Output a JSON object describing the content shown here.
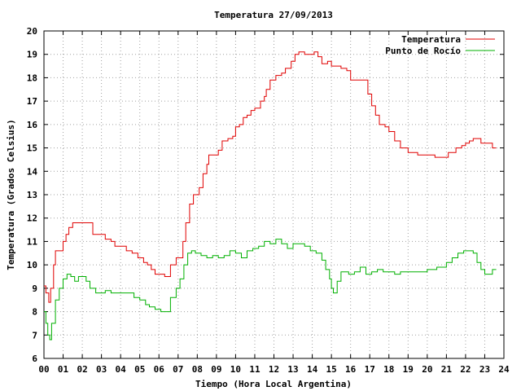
{
  "chart_data": {
    "type": "line",
    "title": "Temperatura 27/09/2013",
    "xlabel": "Tiempo (Hora Local Argentina)",
    "ylabel": "Temperatura (Grados Celsius)",
    "xlim": [
      0,
      24
    ],
    "ylim": [
      6,
      20
    ],
    "x_ticks": [
      "00",
      "01",
      "02",
      "03",
      "04",
      "05",
      "06",
      "07",
      "08",
      "09",
      "10",
      "11",
      "12",
      "13",
      "14",
      "15",
      "16",
      "17",
      "18",
      "19",
      "20",
      "21",
      "22",
      "23",
      "24"
    ],
    "y_ticks": [
      "6",
      "7",
      "8",
      "9",
      "10",
      "11",
      "12",
      "13",
      "14",
      "15",
      "16",
      "17",
      "18",
      "19",
      "20"
    ],
    "grid": true,
    "legend_position": "top-right",
    "series": [
      {
        "name": "Temperatura",
        "color": "#e00000",
        "x": [
          0.0,
          0.1,
          0.25,
          0.35,
          0.5,
          0.6,
          0.9,
          1.0,
          1.15,
          1.3,
          1.5,
          2.0,
          2.4,
          2.55,
          2.8,
          3.2,
          3.5,
          3.7,
          4.0,
          4.3,
          4.6,
          4.9,
          5.2,
          5.4,
          5.6,
          5.8,
          6.1,
          6.3,
          6.6,
          6.9,
          7.05,
          7.25,
          7.4,
          7.6,
          7.8,
          8.1,
          8.3,
          8.5,
          8.6,
          8.9,
          9.1,
          9.3,
          9.6,
          9.85,
          10.0,
          10.2,
          10.4,
          10.6,
          10.8,
          11.0,
          11.3,
          11.5,
          11.6,
          11.8,
          12.1,
          12.4,
          12.6,
          12.9,
          13.1,
          13.3,
          13.6,
          13.9,
          14.1,
          14.3,
          14.5,
          14.8,
          15.0,
          15.2,
          15.5,
          15.8,
          16.0,
          16.3,
          16.6,
          16.9,
          17.1,
          17.3,
          17.5,
          17.8,
          18.0,
          18.3,
          18.6,
          19.0,
          19.5,
          20.0,
          20.4,
          20.8,
          21.1,
          21.5,
          21.8,
          22.0,
          22.2,
          22.4,
          22.8,
          23.0,
          23.2,
          23.4,
          23.6
        ],
        "y": [
          9.1,
          8.8,
          8.4,
          9.0,
          10.0,
          10.6,
          10.6,
          11.0,
          11.3,
          11.6,
          11.8,
          11.8,
          11.8,
          11.3,
          11.3,
          11.1,
          11.0,
          10.8,
          10.8,
          10.6,
          10.5,
          10.3,
          10.1,
          10.0,
          9.8,
          9.6,
          9.6,
          9.5,
          10.0,
          10.3,
          10.3,
          11.0,
          11.8,
          12.6,
          13.0,
          13.3,
          13.9,
          14.3,
          14.7,
          14.7,
          14.9,
          15.3,
          15.4,
          15.5,
          15.9,
          16.0,
          16.3,
          16.4,
          16.6,
          16.7,
          17.0,
          17.2,
          17.5,
          17.9,
          18.1,
          18.2,
          18.4,
          18.7,
          19.0,
          19.1,
          19.0,
          19.0,
          19.1,
          18.9,
          18.6,
          18.7,
          18.5,
          18.5,
          18.4,
          18.3,
          17.9,
          17.9,
          17.9,
          17.3,
          16.8,
          16.4,
          16.0,
          15.9,
          15.7,
          15.3,
          15.0,
          14.8,
          14.7,
          14.7,
          14.6,
          14.6,
          14.8,
          15.0,
          15.1,
          15.2,
          15.3,
          15.4,
          15.2,
          15.2,
          15.2,
          15.0,
          15.0
        ]
      },
      {
        "name": "Punto de Rocío",
        "color": "#00b000",
        "x": [
          0.0,
          0.1,
          0.2,
          0.3,
          0.4,
          0.6,
          0.8,
          1.0,
          1.2,
          1.4,
          1.6,
          1.8,
          2.2,
          2.4,
          2.7,
          3.0,
          3.2,
          3.5,
          3.8,
          4.1,
          4.4,
          4.7,
          5.0,
          5.3,
          5.5,
          5.8,
          6.1,
          6.3,
          6.6,
          6.9,
          7.1,
          7.3,
          7.5,
          7.7,
          7.9,
          8.2,
          8.5,
          8.8,
          9.1,
          9.4,
          9.7,
          10.0,
          10.3,
          10.6,
          10.9,
          11.2,
          11.5,
          11.8,
          12.1,
          12.4,
          12.7,
          13.0,
          13.3,
          13.6,
          13.9,
          14.2,
          14.5,
          14.7,
          14.9,
          15.0,
          15.1,
          15.3,
          15.5,
          15.7,
          15.9,
          16.2,
          16.5,
          16.8,
          17.1,
          17.4,
          17.7,
          18.0,
          18.3,
          18.6,
          19.0,
          19.5,
          20.0,
          20.5,
          21.0,
          21.3,
          21.6,
          21.9,
          22.2,
          22.4,
          22.6,
          22.8,
          23.0,
          23.2,
          23.4,
          23.6
        ],
        "y": [
          8.0,
          7.5,
          7.0,
          6.8,
          7.5,
          8.5,
          9.0,
          9.4,
          9.6,
          9.5,
          9.3,
          9.5,
          9.3,
          9.0,
          8.8,
          8.8,
          8.9,
          8.8,
          8.8,
          8.8,
          8.8,
          8.6,
          8.5,
          8.3,
          8.2,
          8.1,
          8.0,
          8.0,
          8.6,
          9.0,
          9.4,
          10.0,
          10.5,
          10.6,
          10.5,
          10.4,
          10.3,
          10.4,
          10.3,
          10.4,
          10.6,
          10.5,
          10.3,
          10.6,
          10.7,
          10.8,
          11.0,
          10.9,
          11.1,
          10.9,
          10.7,
          10.9,
          10.9,
          10.8,
          10.6,
          10.5,
          10.2,
          9.8,
          9.4,
          9.0,
          8.8,
          9.3,
          9.7,
          9.7,
          9.6,
          9.7,
          9.9,
          9.6,
          9.7,
          9.8,
          9.7,
          9.7,
          9.6,
          9.7,
          9.7,
          9.7,
          9.8,
          9.9,
          10.1,
          10.3,
          10.5,
          10.6,
          10.6,
          10.5,
          10.1,
          9.8,
          9.6,
          9.6,
          9.8,
          9.8
        ]
      }
    ]
  }
}
